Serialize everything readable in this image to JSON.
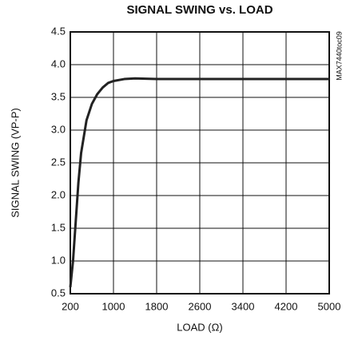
{
  "chart_data": {
    "type": "line",
    "title": "SIGNAL SWING vs. LOAD",
    "xlabel": "LOAD (Ω)",
    "ylabel": "SIGNAL SWING (VP-P)",
    "annotation": "MAX7440toc09",
    "x": [
      200,
      250,
      300,
      350,
      400,
      500,
      600,
      700,
      800,
      900,
      1000,
      1200,
      1400,
      1800,
      2600,
      3400,
      4200,
      5000
    ],
    "series": [
      {
        "color": "#222222",
        "values": [
          0.6,
          1.0,
          1.6,
          2.2,
          2.65,
          3.15,
          3.4,
          3.55,
          3.65,
          3.72,
          3.75,
          3.78,
          3.79,
          3.78,
          3.78,
          3.78,
          3.78,
          3.78
        ]
      }
    ],
    "xlim": [
      200,
      5000
    ],
    "xticks": [
      200,
      1000,
      1800,
      2600,
      3400,
      4200,
      5000
    ],
    "ylim": [
      0.5,
      4.5
    ],
    "yticks": [
      0.5,
      {
        "value": 1,
        "label": "1.0"
      },
      1.5,
      {
        "value": 2,
        "label": "2.0"
      },
      2.5,
      {
        "value": 3,
        "label": "3.0"
      },
      3.5,
      {
        "value": 4,
        "label": "4.0"
      },
      4.5
    ],
    "grid": true
  }
}
